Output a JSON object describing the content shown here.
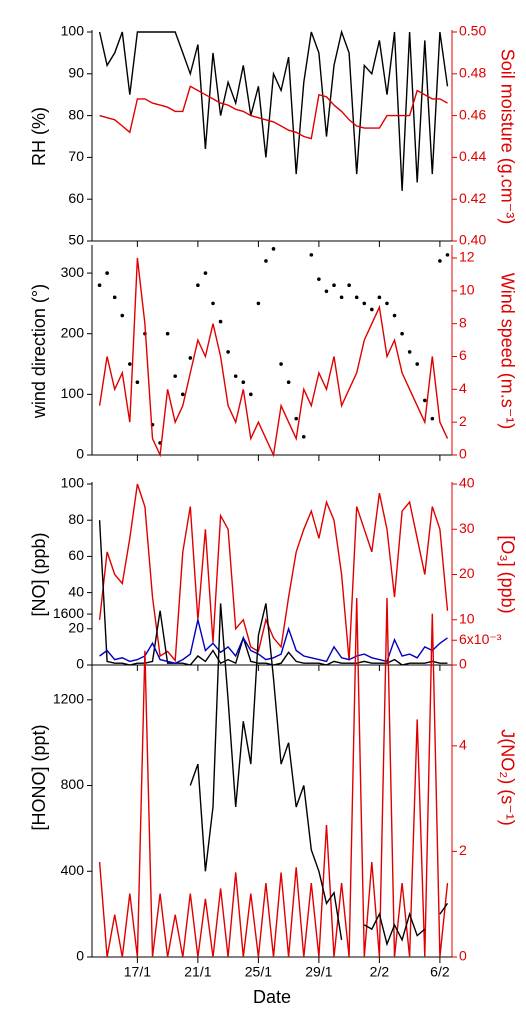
{
  "chart_data": [
    {
      "type": "line",
      "ylabel": "RH (%)",
      "y2label": "Soil moisture (g.cm⁻³)",
      "x": [
        14.5,
        15,
        15.5,
        16,
        16.5,
        17,
        17.5,
        18,
        18.5,
        19,
        19.5,
        20,
        20.5,
        21,
        21.5,
        22,
        22.5,
        23,
        23.5,
        24,
        24.5,
        25,
        25.5,
        26,
        26.5,
        27,
        27.5,
        28,
        28.5,
        29,
        29.5,
        30,
        30.5,
        31,
        31.5,
        32,
        32.5,
        33,
        33.5,
        34,
        34.5,
        35,
        35.5,
        36,
        36.5,
        37,
        37.5
      ],
      "xlim": [
        14,
        37.8
      ],
      "ylim": [
        50,
        100
      ],
      "yticks": [
        50,
        60,
        70,
        80,
        90,
        100
      ],
      "y2lim": [
        0.4,
        0.5
      ],
      "y2ticks": [
        {
          "value": 0.4,
          "label": "0.40"
        },
        0.42,
        0.44,
        0.46,
        0.48,
        {
          "value": 0.5,
          "label": "0.50"
        }
      ],
      "series": [
        {
          "color": "#000000",
          "values": [
            100,
            92,
            95,
            100,
            85,
            100,
            100,
            100,
            100,
            100,
            100,
            95,
            90,
            97,
            72,
            95,
            80,
            88,
            83,
            92,
            80,
            87,
            70,
            90,
            86,
            94,
            66,
            88,
            100,
            95,
            75,
            92,
            100,
            95,
            66,
            92,
            90,
            98,
            85,
            100,
            62,
            100,
            64,
            98,
            66,
            100,
            87
          ]
        },
        {
          "color": "#e00000",
          "axis": "y2",
          "values": [
            0.46,
            0.459,
            0.458,
            0.455,
            0.452,
            0.468,
            0.468,
            0.466,
            0.465,
            0.464,
            0.462,
            0.462,
            0.474,
            0.472,
            0.47,
            0.468,
            0.466,
            0.465,
            0.463,
            0.462,
            0.46,
            0.459,
            0.458,
            0.457,
            0.455,
            0.453,
            0.452,
            0.45,
            0.449,
            0.47,
            0.469,
            0.465,
            0.462,
            0.458,
            0.455,
            0.454,
            0.454,
            0.454,
            0.46,
            0.46,
            0.46,
            0.46,
            0.472,
            0.47,
            0.468,
            0.468,
            0.466
          ]
        }
      ]
    },
    {
      "type": "scatter",
      "ylabel": "wind direction (°)",
      "y2label": "Wind speed (m.s⁻¹)",
      "x": [
        14.5,
        15,
        15.5,
        16,
        16.5,
        17,
        17.5,
        18,
        18.5,
        19,
        19.5,
        20,
        20.5,
        21,
        21.5,
        22,
        22.5,
        23,
        23.5,
        24,
        24.5,
        25,
        25.5,
        26,
        26.5,
        27,
        27.5,
        28,
        28.5,
        29,
        29.5,
        30,
        30.5,
        31,
        31.5,
        32,
        32.5,
        33,
        33.5,
        34,
        34.5,
        35,
        35.5,
        36,
        36.5,
        37,
        37.5
      ],
      "xlim": [
        14,
        37.8
      ],
      "ylim": [
        0,
        343
      ],
      "yticks": [
        0,
        100,
        200,
        300
      ],
      "y2lim": [
        0,
        12.67
      ],
      "y2ticks": [
        0,
        2,
        4,
        6,
        8,
        10,
        12
      ],
      "series": [
        {
          "color": "#000000",
          "values": [
            280,
            300,
            260,
            230,
            150,
            120,
            200,
            50,
            20,
            200,
            130,
            100,
            160,
            280,
            300,
            250,
            220,
            170,
            130,
            120,
            100,
            250,
            320,
            340,
            150,
            120,
            60,
            30,
            330,
            290,
            270,
            280,
            260,
            280,
            260,
            250,
            240,
            260,
            250,
            230,
            200,
            170,
            150,
            90,
            60,
            320,
            330
          ]
        },
        {
          "color": "#e00000",
          "axis": "y2",
          "type": "line",
          "values": [
            3,
            6,
            4,
            5,
            2,
            12,
            8,
            1,
            0,
            4,
            2,
            3,
            5,
            7,
            6,
            8,
            6,
            3,
            2,
            4,
            1,
            2,
            1,
            0,
            3,
            2,
            1,
            4,
            3,
            5,
            4,
            6,
            3,
            4,
            5,
            7,
            8,
            9,
            6,
            7,
            5,
            4,
            3,
            2,
            6,
            2,
            1
          ]
        }
      ]
    },
    {
      "type": "line",
      "ylabel": "[NO] (ppb)",
      "y2label": "[O₃] (ppb)",
      "x": [
        14.5,
        15,
        15.5,
        16,
        16.5,
        17,
        17.5,
        18,
        18.5,
        19,
        19.5,
        20,
        20.5,
        21,
        21.5,
        22,
        22.5,
        23,
        23.5,
        24,
        24.5,
        25,
        25.5,
        26,
        26.5,
        27,
        27.5,
        28,
        28.5,
        29,
        29.5,
        30,
        30.5,
        31,
        31.5,
        32,
        32.5,
        33,
        33.5,
        34,
        34.5,
        35,
        35.5,
        36,
        36.5,
        37,
        37.5
      ],
      "xlim": [
        14,
        37.8
      ],
      "ylim": [
        0,
        100
      ],
      "yticks": [
        0,
        20,
        40,
        60,
        80,
        100
      ],
      "y2lim": [
        0,
        40
      ],
      "y2ticks": [
        0,
        10,
        20,
        30,
        40
      ],
      "series": [
        {
          "color": "#e00000",
          "axis": "y2",
          "values": [
            10,
            25,
            20,
            18,
            28,
            40,
            35,
            15,
            2,
            3,
            1,
            25,
            35,
            10,
            30,
            5,
            33,
            30,
            8,
            10,
            4,
            3,
            10,
            6,
            4,
            15,
            25,
            30,
            34,
            28,
            36,
            32,
            20,
            1,
            35,
            30,
            25,
            38,
            30,
            15,
            34,
            36,
            28,
            20,
            35,
            30,
            12
          ]
        },
        {
          "color": "#000000",
          "values": [
            80,
            2,
            1,
            1,
            0,
            1,
            1,
            2,
            30,
            1,
            1,
            1,
            0,
            5,
            2,
            8,
            1,
            3,
            1,
            15,
            2,
            1,
            1,
            0,
            1,
            7,
            2,
            1,
            1,
            1,
            0,
            2,
            1,
            1,
            1,
            2,
            1,
            1,
            1,
            3,
            0,
            1,
            1,
            1,
            2,
            1,
            1
          ]
        },
        {
          "color": "#0000c0",
          "values": [
            5,
            8,
            3,
            4,
            2,
            3,
            5,
            12,
            3,
            2,
            1,
            3,
            6,
            25,
            8,
            12,
            7,
            10,
            5,
            15,
            8,
            6,
            3,
            4,
            6,
            20,
            8,
            5,
            4,
            3,
            2,
            10,
            4,
            3,
            5,
            6,
            4,
            3,
            2,
            14,
            5,
            6,
            4,
            10,
            8,
            12,
            15
          ]
        }
      ]
    },
    {
      "type": "line",
      "ylabel": "[HONO] (ppt)",
      "y2label": "J(NO₂) (s⁻¹)",
      "xlabel": "Date",
      "x": [
        14.5,
        15,
        15.5,
        16,
        16.5,
        17,
        17.5,
        18,
        18.5,
        19,
        19.5,
        20,
        20.5,
        21,
        21.5,
        22,
        22.5,
        23,
        23.5,
        24,
        24.5,
        25,
        25.5,
        26,
        26.5,
        27,
        27.5,
        28,
        28.5,
        29,
        29.5,
        30,
        30.5,
        31,
        31.5,
        32,
        32.5,
        33,
        33.5,
        34,
        34.5,
        35,
        35.5,
        36,
        36.5,
        37,
        37.5
      ],
      "xlim": [
        14,
        37.8
      ],
      "xticks": [
        {
          "value": 17,
          "label": "17/1"
        },
        {
          "value": 21,
          "label": "21/1"
        },
        {
          "value": 25,
          "label": "25/1"
        },
        {
          "value": 29,
          "label": "29/1"
        },
        {
          "value": 33,
          "label": "2/2"
        },
        {
          "value": 37,
          "label": "6/2"
        }
      ],
      "ylim": [
        0,
        1675
      ],
      "yticks": [
        0,
        400,
        800,
        1200,
        1600
      ],
      "y2lim": [
        0,
        0.0068
      ],
      "y2ticks": [
        0,
        {
          "value": 0.002,
          "label": "2"
        },
        {
          "value": 0.004,
          "label": "4"
        },
        {
          "value": 0.006,
          "label": "6x10⁻³"
        }
      ],
      "series": [
        {
          "color": "#e00000",
          "axis": "y2",
          "values": [
            0.0018,
            0,
            0.0008,
            0,
            0.0012,
            0,
            0.0058,
            0,
            0.0012,
            0,
            0.0008,
            0,
            0.0012,
            0,
            0.0011,
            0,
            0.0013,
            0,
            0.0016,
            0,
            0.0012,
            0,
            0.0014,
            0,
            0.0016,
            0,
            0.0017,
            0,
            0.0014,
            0,
            0.0025,
            0,
            0.0014,
            0,
            0.0068,
            0,
            0.0018,
            0,
            0.0068,
            0,
            0.0014,
            0,
            0.0045,
            0,
            0.0065,
            0,
            0.0014
          ]
        },
        {
          "color": "#000000",
          "values": [
            null,
            null,
            null,
            null,
            null,
            null,
            null,
            null,
            null,
            null,
            null,
            null,
            800,
            900,
            400,
            700,
            1650,
            1200,
            700,
            1100,
            900,
            1500,
            1650,
            1300,
            900,
            1000,
            700,
            800,
            500,
            400,
            250,
            300,
            80,
            null,
            null,
            150,
            130,
            200,
            60,
            150,
            80,
            200,
            100,
            130,
            null,
            200,
            250
          ]
        }
      ]
    }
  ]
}
